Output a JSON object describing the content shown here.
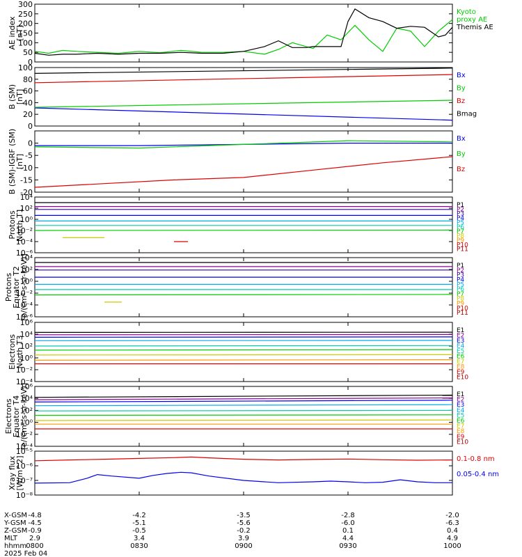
{
  "chart_data": [
    {
      "type": "line",
      "ylabel": "AE index\n[nT]",
      "ylim": [
        0,
        300
      ],
      "yticks": [
        0,
        50,
        100,
        150,
        200,
        250,
        300
      ],
      "ytick_labels": [
        "0",
        "50",
        "100",
        "150",
        "200",
        "250",
        "300"
      ],
      "scale": "linear",
      "series": [
        {
          "name": "Kyoto\nproxy AE",
          "color": "#00cc00",
          "x": [
            0,
            4,
            8,
            12,
            18,
            24,
            30,
            36,
            42,
            48,
            54,
            60,
            66,
            70,
            74,
            78,
            80,
            84,
            88,
            92,
            96,
            100,
            104,
            108,
            112,
            116,
            120
          ],
          "y": [
            55,
            45,
            60,
            55,
            50,
            45,
            55,
            48,
            60,
            50,
            50,
            55,
            40,
            65,
            100,
            80,
            70,
            140,
            115,
            190,
            115,
            55,
            175,
            160,
            80,
            160,
            220
          ]
        },
        {
          "name": "Themis AE",
          "color": "#000000",
          "x": [
            0,
            4,
            8,
            12,
            18,
            24,
            30,
            36,
            42,
            48,
            54,
            60,
            66,
            70,
            74,
            78,
            80,
            84,
            88,
            90,
            92,
            96,
            100,
            104,
            108,
            112,
            116,
            118,
            120
          ],
          "y": [
            45,
            35,
            40,
            40,
            45,
            40,
            45,
            45,
            50,
            45,
            45,
            55,
            80,
            110,
            75,
            75,
            80,
            80,
            80,
            210,
            275,
            230,
            210,
            175,
            185,
            180,
            130,
            140,
            180
          ]
        }
      ],
      "legend": "right"
    },
    {
      "type": "line",
      "ylabel": "B (SM)\n[nT]",
      "ylim": [
        0,
        100
      ],
      "yticks": [
        0,
        20,
        40,
        60,
        80,
        100
      ],
      "ytick_labels": [
        "0",
        "20",
        "40",
        "60",
        "80",
        "100"
      ],
      "scale": "linear",
      "series": [
        {
          "name": "Bx",
          "color": "#0000ee",
          "x": [
            0,
            120
          ],
          "y": [
            31,
            10
          ]
        },
        {
          "name": "By",
          "color": "#00cc00",
          "x": [
            0,
            120
          ],
          "y": [
            32,
            44
          ]
        },
        {
          "name": "Bz",
          "color": "#dd0000",
          "x": [
            0,
            120
          ],
          "y": [
            74,
            88
          ]
        },
        {
          "name": "Bmag",
          "color": "#000000",
          "x": [
            0,
            120
          ],
          "y": [
            90,
            99
          ]
        }
      ],
      "legend": "right"
    },
    {
      "type": "line",
      "ylabel": "B (SM)-IGRF (SM)\n[nT]",
      "ylim": [
        -20,
        5
      ],
      "yticks": [
        -20,
        -15,
        -10,
        -5,
        0
      ],
      "ytick_labels": [
        "-20",
        "-15",
        "-10",
        "-5",
        "0"
      ],
      "scale": "linear",
      "series": [
        {
          "name": "Bx",
          "color": "#0000ee",
          "x": [
            0,
            30,
            60,
            90,
            120
          ],
          "y": [
            -1,
            -1,
            -0.5,
            0,
            0
          ]
        },
        {
          "name": "By",
          "color": "#00cc00",
          "x": [
            0,
            30,
            60,
            90,
            120
          ],
          "y": [
            -1.5,
            -2,
            -0.5,
            1,
            0.5
          ]
        },
        {
          "name": "Bz",
          "color": "#dd0000",
          "x": [
            0,
            20,
            40,
            60,
            80,
            100,
            120
          ],
          "y": [
            -18,
            -16.5,
            -15,
            -14,
            -11,
            -8,
            -5.5
          ]
        }
      ],
      "legend": "right"
    },
    {
      "type": "line",
      "ylabel": "Protons\nNorth T1",
      "ylim": [
        1e-06,
        10000.0
      ],
      "yticks": [
        1e-06,
        0.0001,
        0.01,
        1,
        100,
        10000.0
      ],
      "ytick_labels": [
        "10⁻⁶",
        "10⁻⁴",
        "10⁻²",
        "10⁰",
        "10²",
        "10⁴"
      ],
      "scale": "log",
      "series": [
        {
          "name": "P1",
          "color": "#000000",
          "x": [
            0,
            120
          ],
          "y": [
            1000,
            1000
          ]
        },
        {
          "name": "P2",
          "color": "#8b0099",
          "x": [
            0,
            120
          ],
          "y": [
            200,
            200
          ]
        },
        {
          "name": "P3",
          "color": "#3000a0",
          "x": [
            0,
            120
          ],
          "y": [
            60,
            60
          ]
        },
        {
          "name": "P4",
          "color": "#0000ee",
          "x": [
            0,
            120
          ],
          "y": [
            5,
            5
          ]
        },
        {
          "name": "P5",
          "color": "#00aaee",
          "x": [
            0,
            120
          ],
          "y": [
            0.5,
            0.5
          ]
        },
        {
          "name": "P6",
          "color": "#00ccaa",
          "x": [
            0,
            120
          ],
          "y": [
            0.08,
            0.08
          ]
        },
        {
          "name": "P7",
          "color": "#00cc00",
          "x": [
            0,
            120
          ],
          "y": [
            0.01,
            0.012
          ]
        },
        {
          "name": "P8",
          "color": "#cccc00",
          "x": [
            8,
            20
          ],
          "y": [
            0.0005,
            0.0005
          ]
        },
        {
          "name": "P9",
          "color": "#ff9900",
          "x": [
            0,
            120
          ],
          "y": [
            null,
            null
          ]
        },
        {
          "name": "P10",
          "color": "#dd0000",
          "x": [
            40,
            44
          ],
          "y": [
            0.0001,
            0.0001
          ]
        },
        {
          "name": "P11",
          "color": "#aa0000",
          "x": [
            0,
            120
          ],
          "y": [
            null,
            null
          ]
        }
      ],
      "legend": "right"
    },
    {
      "type": "line",
      "ylabel": "Protons\nEquator T2\n[p/(cm²-s-sr-keV)]",
      "ylim": [
        1e-06,
        10000.0
      ],
      "yticks": [
        1e-06,
        0.0001,
        0.01,
        1,
        100,
        10000.0
      ],
      "ytick_labels": [
        "10⁻⁶",
        "10⁻⁴",
        "10⁻²",
        "10⁰",
        "10²",
        "10⁴"
      ],
      "scale": "log",
      "series": [
        {
          "name": "P1",
          "color": "#000000",
          "x": [
            0,
            120
          ],
          "y": [
            1500,
            1500
          ]
        },
        {
          "name": "P2",
          "color": "#8b0099",
          "x": [
            0,
            120
          ],
          "y": [
            300,
            300
          ]
        },
        {
          "name": "P3",
          "color": "#3000a0",
          "x": [
            0,
            120
          ],
          "y": [
            80,
            80
          ]
        },
        {
          "name": "P4",
          "color": "#0000ee",
          "x": [
            0,
            120
          ],
          "y": [
            5,
            5
          ]
        },
        {
          "name": "P5",
          "color": "#00aaee",
          "x": [
            0,
            120
          ],
          "y": [
            0.3,
            0.3
          ]
        },
        {
          "name": "P6",
          "color": "#00ccaa",
          "x": [
            0,
            120
          ],
          "y": [
            0.04,
            0.04
          ]
        },
        {
          "name": "P7",
          "color": "#00cc00",
          "x": [
            0,
            120
          ],
          "y": [
            0.005,
            0.006
          ]
        },
        {
          "name": "P8",
          "color": "#cccc00",
          "x": [
            20,
            25
          ],
          "y": [
            0.0003,
            0.0003
          ]
        },
        {
          "name": "P9",
          "color": "#ff9900",
          "x": [
            0,
            120
          ],
          "y": [
            null,
            null
          ]
        },
        {
          "name": "P10",
          "color": "#dd0000",
          "x": [
            0,
            120
          ],
          "y": [
            null,
            null
          ]
        },
        {
          "name": "P11",
          "color": "#aa0000",
          "x": [
            0,
            120
          ],
          "y": [
            null,
            null
          ]
        }
      ],
      "legend": "right"
    },
    {
      "type": "line",
      "ylabel": "Electrons\nNorth T3",
      "ylim": [
        0.0001,
        1000000.0
      ],
      "yticks": [
        0.0001,
        0.01,
        1,
        100,
        10000.0,
        1000000.0
      ],
      "ytick_labels": [
        "10⁻⁴",
        "10⁻²",
        "10⁰",
        "10²",
        "10⁴",
        "10⁶"
      ],
      "scale": "log",
      "series": [
        {
          "name": "E1",
          "color": "#000000",
          "x": [
            0,
            120
          ],
          "y": [
            20000,
            22000
          ]
        },
        {
          "name": "E2",
          "color": "#8b0099",
          "x": [
            0,
            120
          ],
          "y": [
            8000,
            9000
          ]
        },
        {
          "name": "E3",
          "color": "#0000ee",
          "x": [
            0,
            120
          ],
          "y": [
            3000,
            3500
          ]
        },
        {
          "name": "E4",
          "color": "#00aaee",
          "x": [
            0,
            120
          ],
          "y": [
            800,
            900
          ]
        },
        {
          "name": "E5",
          "color": "#00ccaa",
          "x": [
            0,
            120
          ],
          "y": [
            100,
            120
          ]
        },
        {
          "name": "E6",
          "color": "#00cc00",
          "x": [
            0,
            120
          ],
          "y": [
            20,
            25
          ]
        },
        {
          "name": "E7",
          "color": "#cccc00",
          "x": [
            0,
            120
          ],
          "y": [
            3,
            3.5
          ]
        },
        {
          "name": "E8",
          "color": "#ff9900",
          "x": [
            0,
            120
          ],
          "y": [
            0.4,
            0.5
          ]
        },
        {
          "name": "E9",
          "color": "#dd0000",
          "x": [
            0,
            120
          ],
          "y": [
            0.1,
            0.1
          ]
        },
        {
          "name": "E10",
          "color": "#aa0000",
          "x": [
            0,
            120
          ],
          "y": [
            null,
            null
          ]
        }
      ],
      "legend": "right"
    },
    {
      "type": "line",
      "ylabel": "Electrons\nEquator T4\n[e/(cm²-s-sr-keV)]",
      "ylim": [
        0.0001,
        1000000.0
      ],
      "yticks": [
        0.0001,
        0.01,
        1,
        100,
        10000.0,
        1000000.0
      ],
      "ytick_labels": [
        "10⁻⁴",
        "10⁻²",
        "10⁰",
        "10²",
        "10⁴",
        "10⁶"
      ],
      "scale": "log",
      "series": [
        {
          "name": "E1",
          "color": "#000000",
          "x": [
            0,
            120
          ],
          "y": [
            15000,
            35000
          ]
        },
        {
          "name": "E2",
          "color": "#8b0099",
          "x": [
            0,
            120
          ],
          "y": [
            6000,
            12000
          ]
        },
        {
          "name": "E3",
          "color": "#0000ee",
          "x": [
            0,
            120
          ],
          "y": [
            2500,
            5000
          ]
        },
        {
          "name": "E4",
          "color": "#00aaee",
          "x": [
            0,
            120
          ],
          "y": [
            600,
            900
          ]
        },
        {
          "name": "E5",
          "color": "#00ccaa",
          "x": [
            0,
            120
          ],
          "y": [
            80,
            100
          ]
        },
        {
          "name": "E6",
          "color": "#00cc00",
          "x": [
            0,
            120
          ],
          "y": [
            15,
            18
          ]
        },
        {
          "name": "E7",
          "color": "#cccc00",
          "x": [
            0,
            120
          ],
          "y": [
            2,
            2.5
          ]
        },
        {
          "name": "E8",
          "color": "#ff9900",
          "x": [
            0,
            120
          ],
          "y": [
            0.5,
            0.5
          ]
        },
        {
          "name": "E9",
          "color": "#dd0000",
          "x": [
            0,
            120
          ],
          "y": [
            0.08,
            0.08
          ]
        },
        {
          "name": "E10",
          "color": "#aa0000",
          "x": [
            0,
            120
          ],
          "y": [
            null,
            null
          ]
        }
      ],
      "legend": "right"
    },
    {
      "type": "line",
      "ylabel": "Xray flux\n[W/m^2]",
      "ylim": [
        1e-08,
        1e-05
      ],
      "yticks": [
        1e-08,
        1e-07,
        1e-06,
        1e-05
      ],
      "ytick_labels": [
        "10⁻⁸",
        "10⁻⁷",
        "10⁻⁶",
        "10⁻⁵"
      ],
      "scale": "log",
      "series": [
        {
          "name": "0.1-0.8 nm",
          "color": "#dd0000",
          "x": [
            0,
            10,
            20,
            30,
            40,
            45,
            50,
            60,
            70,
            80,
            90,
            100,
            110,
            120
          ],
          "y": [
            2.2e-06,
            2.5e-06,
            2.8e-06,
            3.2e-06,
            3.6e-06,
            4e-06,
            3.5e-06,
            2.8e-06,
            2.5e-06,
            2.7e-06,
            2.9e-06,
            2.6e-06,
            2.4e-06,
            2.5e-06
          ]
        },
        {
          "name": "0.05-0.4 nm",
          "color": "#0000ee",
          "x": [
            0,
            10,
            15,
            18,
            22,
            30,
            34,
            38,
            42,
            45,
            50,
            60,
            70,
            80,
            85,
            90,
            95,
            100,
            105,
            110,
            115,
            120
          ],
          "y": [
            6.5e-08,
            7e-08,
            1.4e-07,
            2.5e-07,
            2e-07,
            1.4e-07,
            2.2e-07,
            3e-07,
            3.6e-07,
            3.3e-07,
            2e-07,
            1e-07,
            7e-08,
            8e-08,
            9e-08,
            8e-08,
            7e-08,
            7.5e-08,
            1.1e-07,
            8e-08,
            7e-08,
            7e-08
          ]
        }
      ],
      "legend": "right"
    }
  ],
  "xaxis": {
    "tick_minutes": [
      0,
      30,
      60,
      90,
      120
    ],
    "rows": [
      {
        "label": "X-GSM",
        "values": [
          "-4.8",
          "-4.2",
          "-3.5",
          "-2.8",
          "-2.0"
        ]
      },
      {
        "label": "Y-GSM",
        "values": [
          "-4.5",
          "-5.1",
          "-5.6",
          "-6.0",
          "-6.3"
        ]
      },
      {
        "label": "Z-GSM",
        "values": [
          "-0.9",
          "-0.5",
          "-0.2",
          "0.1",
          "0.4"
        ]
      },
      {
        "label": "MLT",
        "values": [
          "2.9",
          "3.4",
          "3.9",
          "4.4",
          "4.9"
        ]
      },
      {
        "label": "hhmm",
        "values": [
          "0800",
          "0830",
          "0900",
          "0930",
          "1000"
        ]
      }
    ],
    "date": "2025 Feb 04"
  }
}
